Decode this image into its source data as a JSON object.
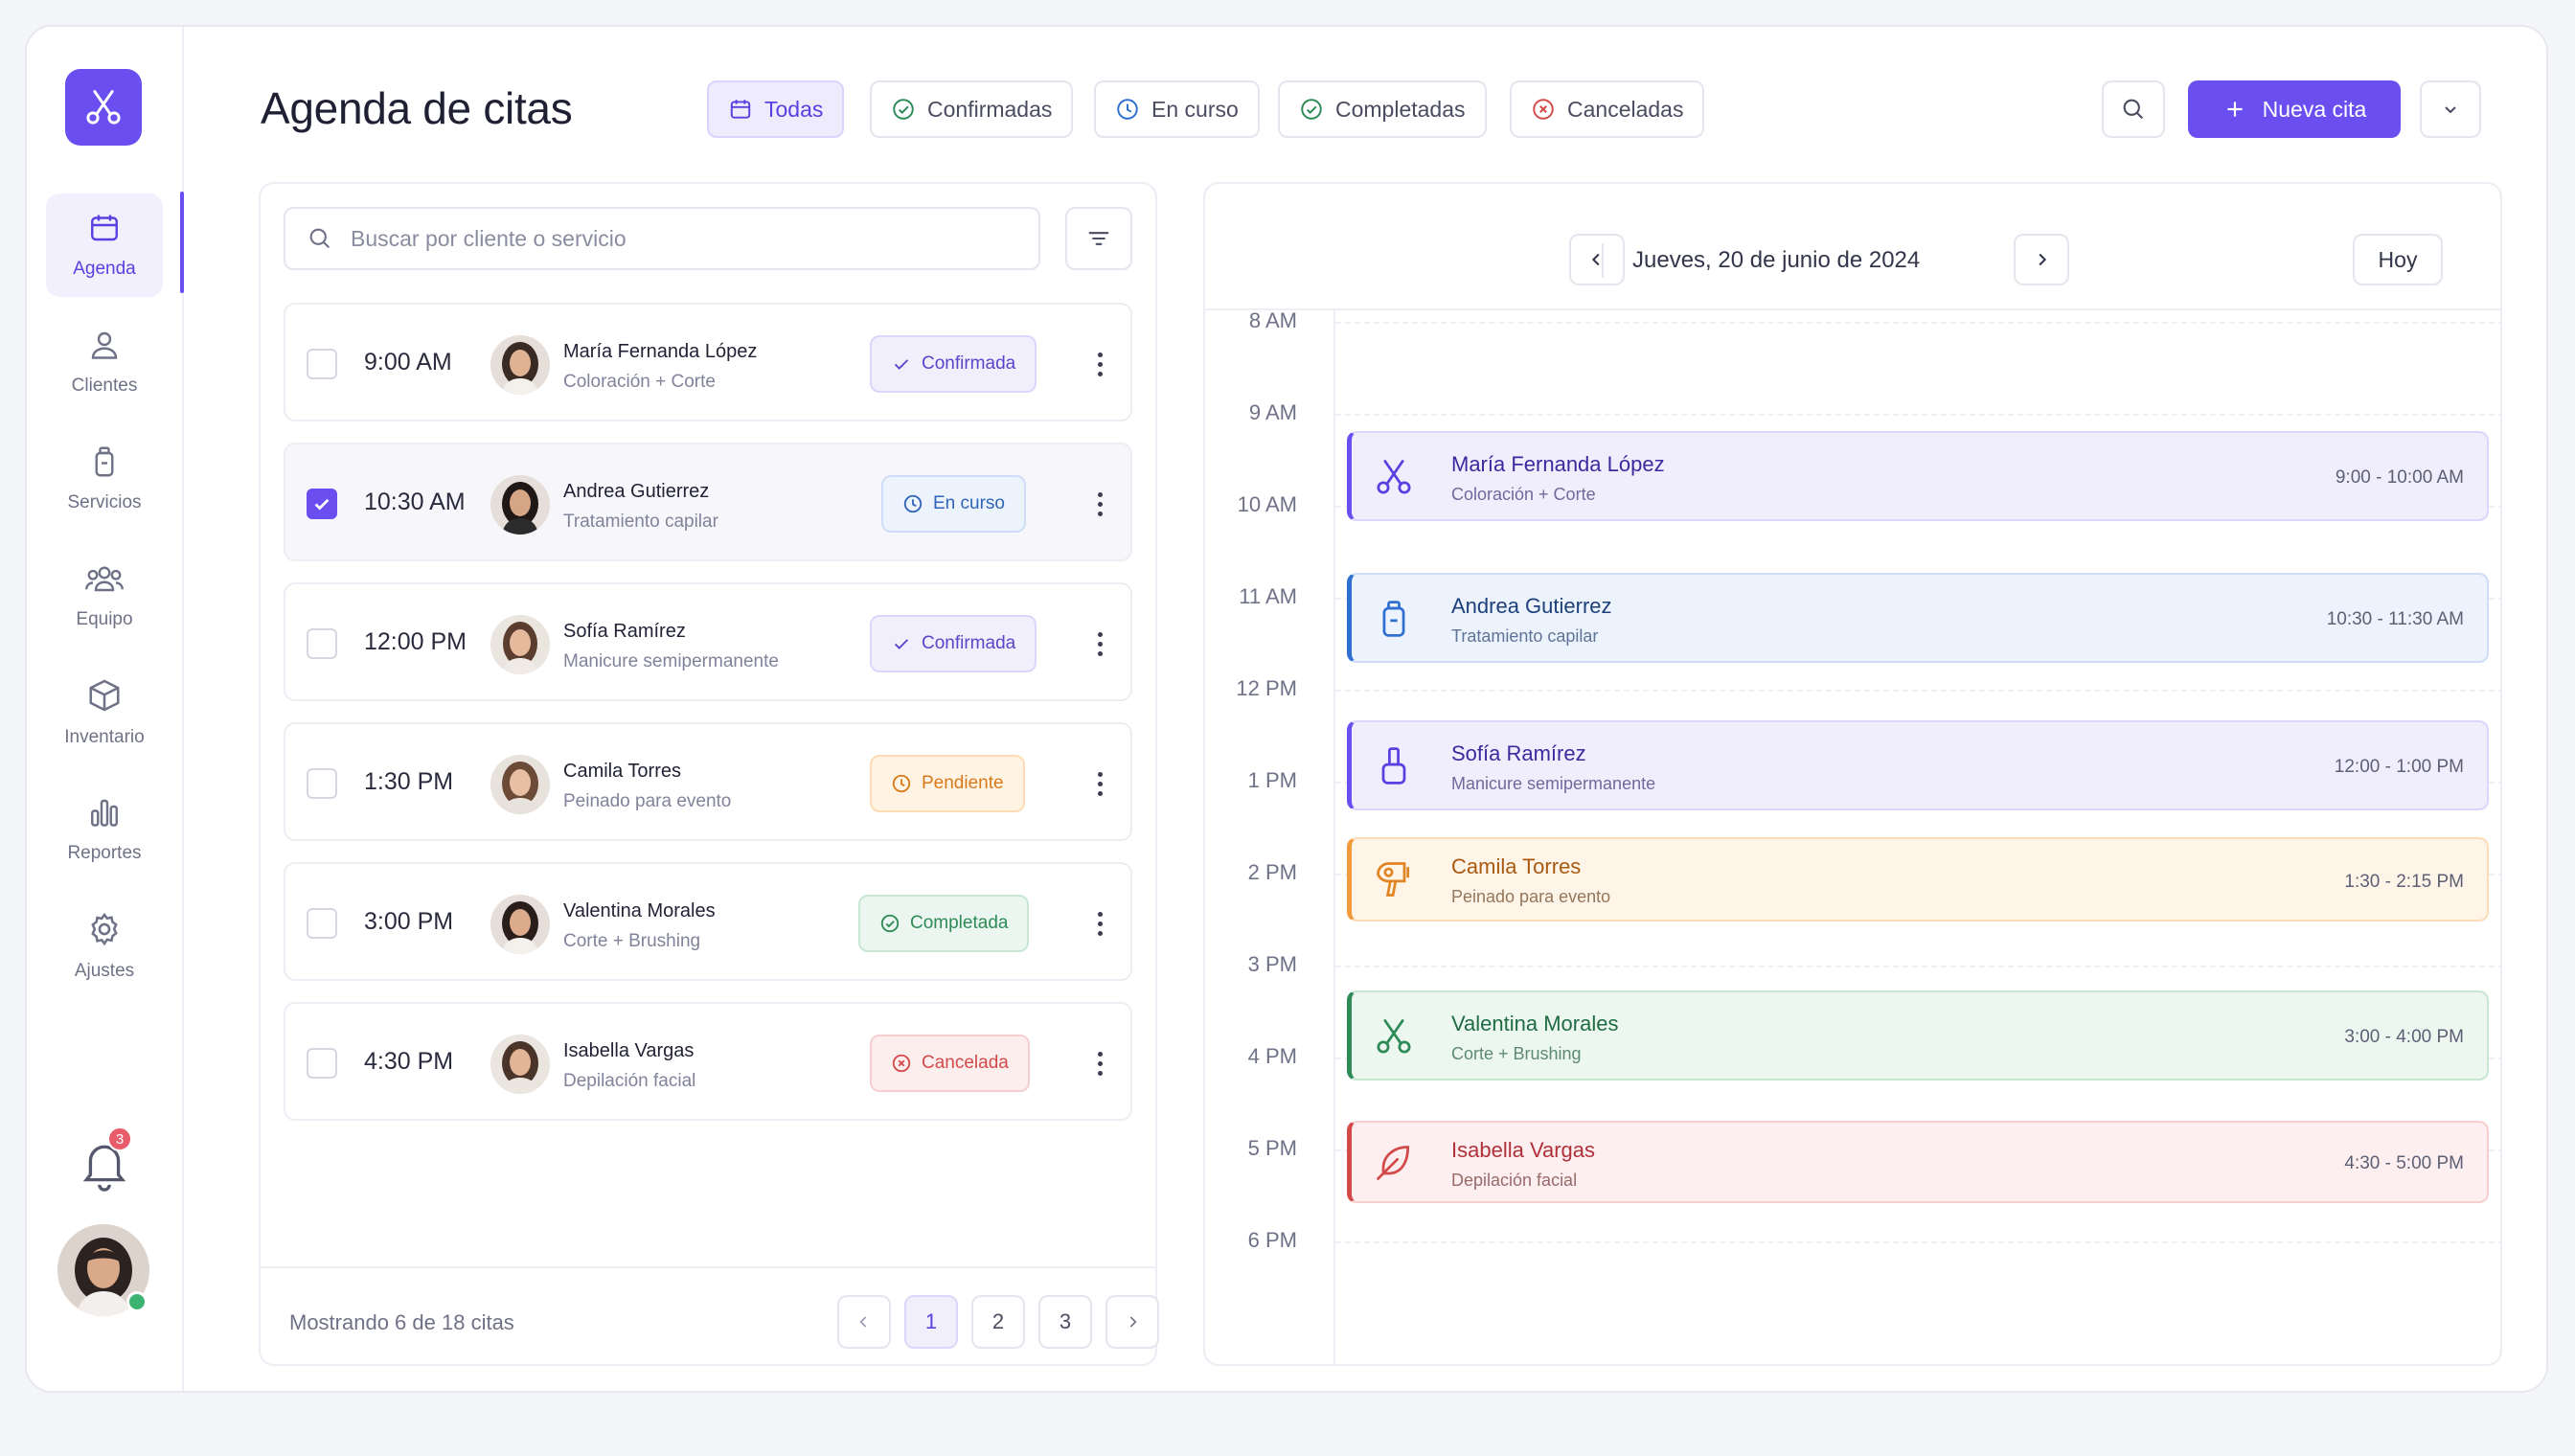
{
  "header": {
    "title": "Agenda de citas",
    "filters": [
      {
        "label": "Todas",
        "icon": "calendar-icon",
        "active": true
      },
      {
        "label": "Confirmadas",
        "icon": "check-circle-icon"
      },
      {
        "label": "En curso",
        "icon": "clock-icon"
      },
      {
        "label": "Completadas",
        "icon": "check-circle-icon"
      },
      {
        "label": "Canceladas",
        "icon": "x-circle-icon"
      }
    ],
    "new_button": "Nueva cita"
  },
  "sidebar": {
    "items": [
      {
        "label": "Agenda",
        "icon": "calendar-icon",
        "active": true
      },
      {
        "label": "Clientes",
        "icon": "user-icon"
      },
      {
        "label": "Servicios",
        "icon": "bottle-icon"
      },
      {
        "label": "Equipo",
        "icon": "team-icon"
      },
      {
        "label": "Inventario",
        "icon": "box-icon"
      },
      {
        "label": "Reportes",
        "icon": "bar-chart-icon"
      },
      {
        "label": "Ajustes",
        "icon": "gear-icon"
      }
    ],
    "notifications": "3"
  },
  "list": {
    "search_placeholder": "Buscar por cliente o servicio",
    "appointments": [
      {
        "time": "9:00 AM",
        "name": "María Fernanda López",
        "service": "Coloración + Corte",
        "status": "Confirmada",
        "checked": false
      },
      {
        "time": "10:30 AM",
        "name": "Andrea Gutierrez",
        "service": "Tratamiento capilar",
        "status": "En curso",
        "checked": true
      },
      {
        "time": "12:00 PM",
        "name": "Sofía Ramírez",
        "service": "Manicure semipermanente",
        "status": "Confirmada",
        "checked": false
      },
      {
        "time": "1:30 PM",
        "name": "Camila Torres",
        "service": "Peinado para evento",
        "status": "Pendiente",
        "checked": false
      },
      {
        "time": "3:00 PM",
        "name": "Valentina Morales",
        "service": "Corte + Brushing",
        "status": "Completada",
        "checked": false
      },
      {
        "time": "4:30 PM",
        "name": "Isabella Vargas",
        "service": "Depilación facial",
        "status": "Cancelada",
        "checked": false
      }
    ],
    "showing": "Mostrando 6 de 18 citas",
    "pages": [
      "1",
      "2",
      "3"
    ]
  },
  "calendar": {
    "date": "Jueves, 20 de junio de 2024",
    "today_label": "Hoy",
    "hours": [
      "8 AM",
      "9 AM",
      "10 AM",
      "11 AM",
      "12 PM",
      "1 PM",
      "2 PM",
      "3 PM",
      "4 PM",
      "5 PM",
      "6 PM"
    ],
    "events": [
      {
        "name": "María Fernanda López",
        "service": "Coloración + Corte",
        "time": "9:00 - 10:00 AM",
        "icon": "scissors-icon"
      },
      {
        "name": "Andrea Gutierrez",
        "service": "Tratamiento capilar",
        "time": "10:30 - 11:30 AM",
        "icon": "bottle-icon"
      },
      {
        "name": "Sofía Ramírez",
        "service": "Manicure semipermanente",
        "time": "12:00 - 1:00 PM",
        "icon": "nail-polish-icon"
      },
      {
        "name": "Camila Torres",
        "service": "Peinado para evento",
        "time": "1:30 - 2:15 PM",
        "icon": "hair-dryer-icon"
      },
      {
        "name": "Valentina Morales",
        "service": "Corte + Brushing",
        "time": "3:00 - 4:00 PM",
        "icon": "scissors-icon"
      },
      {
        "name": "Isabella Vargas",
        "service": "Depilación facial",
        "time": "4:30 - 5:00 PM",
        "icon": "feather-icon"
      }
    ]
  },
  "colors": {
    "accent": "#6a4ef0",
    "blue": "#2f6fd1",
    "orange": "#f29b3a",
    "green": "#2e8a56",
    "red": "#d24a4a"
  }
}
